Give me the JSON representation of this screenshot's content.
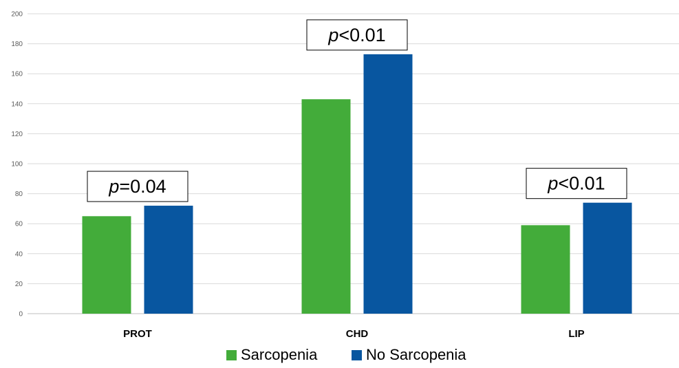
{
  "chart_data": {
    "type": "bar",
    "title": "",
    "xlabel": "",
    "ylabel": "",
    "categories": [
      "PROT",
      "CHD",
      "LIP"
    ],
    "series": [
      {
        "name": "Sarcopenia",
        "color": "#43AC3A",
        "values": [
          65,
          143,
          59
        ]
      },
      {
        "name": "No Sarcopenia",
        "color": "#0856A0",
        "values": [
          72,
          173,
          74
        ]
      }
    ],
    "ylim": [
      0,
      200
    ],
    "yticks": [
      0,
      20,
      40,
      60,
      80,
      100,
      120,
      140,
      160,
      180,
      200
    ],
    "grid": true,
    "legend_position": "bottom",
    "annotations": [
      {
        "category": "PROT",
        "italic": "p",
        "rest": "=0.04"
      },
      {
        "category": "CHD",
        "italic": "p",
        "rest": "<0.01"
      },
      {
        "category": "LIP",
        "italic": "p",
        "rest": "<0.01"
      }
    ]
  }
}
